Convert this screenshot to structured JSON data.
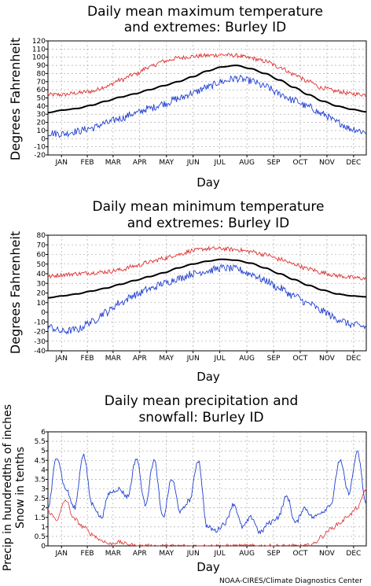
{
  "footer": {
    "credit": "NOAA-CIRES/Climate Diagnostics Center"
  },
  "colors": {
    "extreme_high": "#e03030",
    "mean": "#000000",
    "extreme_low": "#2040d0",
    "precip": "#2040d0",
    "snow": "#e03030",
    "grid": "#999999"
  },
  "chart_data": [
    {
      "type": "line",
      "title": "Daily mean maximum temperature and extremes: Burley ID",
      "title_lines": [
        "Daily mean maximum temperature",
        "and extremes: Burley ID"
      ],
      "xlabel": "Day",
      "ylabel": "Degrees Fahrenheit",
      "ylabel_lines": [
        "Degrees Fahrenheit"
      ],
      "x_tick_labels": [
        "JAN",
        "FEB",
        "MAR",
        "APR",
        "MAY",
        "JUN",
        "JUL",
        "AUG",
        "SEP",
        "OCT",
        "NOV",
        "DEC"
      ],
      "y_ticks": [
        -20,
        -10,
        0,
        10,
        20,
        30,
        40,
        50,
        60,
        70,
        80,
        90,
        100,
        110,
        120
      ],
      "ylim": [
        -20,
        120
      ],
      "grid": true,
      "series": [
        {
          "role": "extreme_high",
          "values": [
            54,
            54,
            56,
            58,
            64,
            72,
            79,
            88,
            95,
            99,
            101,
            102,
            103,
            102,
            99,
            95,
            88,
            79,
            70,
            62,
            58,
            55,
            54
          ]
        },
        {
          "role": "mean",
          "values": [
            32,
            35,
            37,
            41,
            46,
            51,
            55,
            60,
            65,
            70,
            76,
            83,
            88,
            90,
            86,
            80,
            72,
            63,
            54,
            46,
            40,
            36,
            33
          ]
        },
        {
          "role": "extreme_low",
          "values": [
            7,
            6,
            9,
            13,
            19,
            25,
            31,
            37,
            43,
            49,
            56,
            63,
            70,
            74,
            71,
            64,
            55,
            47,
            39,
            30,
            20,
            12,
            8
          ]
        }
      ]
    },
    {
      "type": "line",
      "title": "Daily mean minimum temperature and extremes: Burley ID",
      "title_lines": [
        "Daily mean minimum temperature",
        "and extremes: Burley ID"
      ],
      "xlabel": "Day",
      "ylabel": "Degrees Fahrenheit",
      "ylabel_lines": [
        "Degrees Fahrenheit"
      ],
      "x_tick_labels": [
        "JAN",
        "FEB",
        "MAR",
        "APR",
        "MAY",
        "JUN",
        "JUL",
        "AUG",
        "SEP",
        "OCT",
        "NOV",
        "DEC"
      ],
      "y_ticks": [
        -40,
        -30,
        -20,
        -10,
        0,
        10,
        20,
        30,
        40,
        50,
        60,
        70,
        80
      ],
      "ylim": [
        -40,
        80
      ],
      "grid": true,
      "series": [
        {
          "role": "extreme_high",
          "values": [
            37,
            39,
            40,
            41,
            42,
            44,
            48,
            52,
            56,
            60,
            64,
            66,
            66,
            65,
            63,
            60,
            55,
            50,
            45,
            41,
            38,
            36,
            35
          ]
        },
        {
          "role": "mean",
          "values": [
            15,
            17,
            19,
            22,
            25,
            29,
            33,
            37,
            41,
            46,
            50,
            53,
            55,
            54,
            51,
            46,
            40,
            34,
            28,
            23,
            19,
            17,
            16
          ]
        },
        {
          "role": "extreme_low",
          "values": [
            -15,
            -20,
            -18,
            -10,
            0,
            10,
            18,
            24,
            30,
            35,
            40,
            43,
            46,
            45,
            40,
            33,
            25,
            17,
            9,
            1,
            -7,
            -13,
            -15
          ]
        }
      ]
    },
    {
      "type": "line",
      "title": "Daily mean precipitation and snowfall: Burley ID",
      "title_lines": [
        "Daily mean precipitation and",
        "snowfall: Burley ID"
      ],
      "xlabel": "Day",
      "ylabel": "Precip in hundredths of inches Snow in tenths",
      "ylabel_lines": [
        "Precip in hundredths of inches",
        "Snow in tenths"
      ],
      "x_tick_labels": [
        "JAN",
        "FEB",
        "MAR",
        "APR",
        "MAY",
        "JUN",
        "JUL",
        "AUG",
        "SEP",
        "OCT",
        "NOV",
        "DEC"
      ],
      "y_ticks": [
        0,
        0.5,
        1,
        1.5,
        2,
        2.5,
        3,
        3.5,
        4,
        4.5,
        5,
        5.5,
        6
      ],
      "y_tick_labels": [
        "0",
        "0.5",
        "1",
        "1.5",
        "2",
        "2.5",
        "3",
        "3.5",
        "4",
        "4.5",
        "5",
        "5.5",
        "6"
      ],
      "ylim": [
        0,
        6
      ],
      "grid": true,
      "series": [
        {
          "role": "precip",
          "values": [
            2.0,
            4.7,
            3.0,
            2.0,
            4.8,
            2.2,
            1.5,
            2.8,
            3.0,
            2.6,
            4.6,
            2.2,
            4.5,
            1.5,
            3.5,
            1.8,
            2.4,
            4.5,
            1.0,
            0.8,
            1.2,
            2.2,
            1.0,
            1.5,
            0.7,
            1.2,
            1.5,
            2.6,
            1.2,
            2.0,
            1.5,
            1.8,
            2.2,
            4.5,
            2.8,
            4.9,
            2.2
          ]
        },
        {
          "role": "snow",
          "values": [
            1.8,
            1.4,
            2.4,
            1.4,
            1.0,
            0.6,
            0.3,
            0.1,
            0.2,
            0.1,
            0.0,
            0.0,
            0.0,
            0.0,
            0.0,
            0.0,
            0.0,
            0.0,
            0.0,
            0.0,
            0.0,
            0.0,
            0.0,
            0.0,
            0.0,
            0.0,
            0.0,
            0.0,
            0.0,
            0.0,
            0.1,
            0.5,
            0.9,
            1.2,
            1.6,
            2.0,
            3.0
          ]
        }
      ]
    }
  ]
}
